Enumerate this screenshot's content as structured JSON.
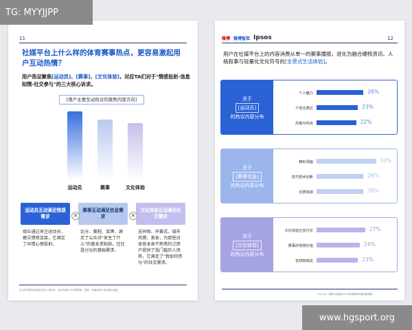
{
  "tag_label": "TG: MYYJJPP",
  "watermark_url": "www.hgsport.org",
  "left_page": {
    "page_number": "11",
    "title": "社媒平台上什么样的体育赛事热点，更容易激起用户互动热情？",
    "intro_prefix": "用户热议聚焦",
    "intro_hl1": "[运动员]",
    "intro_sep1": "、",
    "intro_hl2": "[赛事]",
    "intro_sep2": "、",
    "intro_hl3": "[文化体验]",
    "intro_suffix": "，对应TA们对于\"情感投射-信息知情-社交参与\"的三大核心诉求。",
    "chart_title": "[用户主要互动热议的聚焦内容方向]",
    "cards": [
      {
        "head": "运动员互动满足情感需求",
        "body": "观众通过关注运动员，建立情感连接，它满足了共情心理投射。"
      },
      {
        "head": "赛事互动满足信息需求",
        "body": "比分、赛程、奖牌，满足了公众对\"发生了什么\"的基本求知欲。往往是讨论的基础需求。"
      },
      {
        "head": "文化体验互动满足社交需求",
        "body": "吉祥物、开幕式、城市风情、美食，为那些对体育本身不熟悉的泛用户提供了低门槛的入场券，它满足了\"我如何参与\"的社交需求。"
      }
    ],
    "cross_symbol": "×",
    "footnote": "本文件所载内容版权归本公司所有，未经书面许可不得转载、复制、传播或用于任何商业用途。"
  },
  "chart_data": {
    "type": "bar",
    "title": "[用户主要互动热议的聚焦内容方向]",
    "categories": [
      "运动员",
      "赛事",
      "文化体验"
    ],
    "values": [
      100,
      88,
      83
    ],
    "colors": [
      "#3a6fe0",
      "#b8c8ee",
      "#c4c0ea"
    ],
    "ylim": [
      0,
      100
    ]
  },
  "right_page": {
    "page_number": "12",
    "logos": {
      "weibo": "微博",
      "zhiwei": "微博智库",
      "ipsos": "Ipsos"
    },
    "intro_main": "用户在社媒平台上的内容消费从单一的赛事播报，进化为融合硬核资讯、人格叙事与轻量化文化符号的",
    "intro_hl": "[全景式生活体验]",
    "intro_end": "。",
    "panels": [
      {
        "title_top": "关于",
        "title_pill": "[运动员]",
        "title_bottom": "的热议内容分布",
        "header_color": "#2a62d6",
        "bar_color": "#2a62d6",
        "value_color": "#5b84e0",
        "rows": [
          {
            "label": "个人魅力",
            "value": 26,
            "display": "26%"
          },
          {
            "label": "个性化表达",
            "value": 23,
            "display": "23%"
          },
          {
            "label": "风格与时尚",
            "value": 22,
            "display": "22%"
          }
        ]
      },
      {
        "title_top": "关于",
        "title_pill": "[赛事信息]",
        "title_bottom": "的热议内容分布",
        "header_color": "#9bb6ec",
        "bar_color": "#bfd0f2",
        "value_color": "#a9bde8",
        "rows": [
          {
            "label": "精彩场面",
            "value": 33,
            "display": "33%"
          },
          {
            "label": "技巧技术创新",
            "value": 26,
            "display": "26%"
          },
          {
            "label": "比赛成绩",
            "value": 26,
            "display": "26%"
          }
        ]
      },
      {
        "title_top": "关于",
        "title_pill": "[文化体验]",
        "title_bottom": "的热议内容分布",
        "header_color": "#a6a3e3",
        "bar_color": "#b9b5ec",
        "value_color": "#9b97d8",
        "rows": [
          {
            "label": "文化体验正向讨论",
            "value": 27,
            "display": "27%"
          },
          {
            "label": "赛事的情感价值",
            "value": 24,
            "display": "24%"
          },
          {
            "label": "吉祥物相关",
            "value": 23,
            "display": "23%"
          }
        ]
      }
    ],
    "source": "Source：微博&益普索2024体育赛事传播效果调研"
  }
}
